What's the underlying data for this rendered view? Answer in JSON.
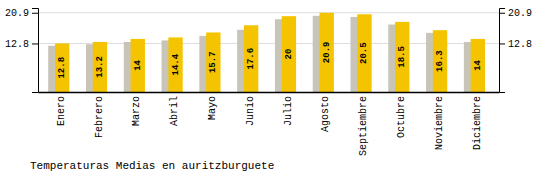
{
  "chart_data": {
    "type": "bar",
    "title": "Temperaturas Medias en auritzburguete",
    "categories": [
      "Enero",
      "Febrero",
      "Marzo",
      "Abril",
      "Mayo",
      "Junio",
      "Julio",
      "Agosto",
      "Septiembre",
      "Octubre",
      "Noviembre",
      "Diciembre"
    ],
    "series": [
      {
        "color": "#C8C4B8",
        "values": [
          12.2,
          12.6,
          13.2,
          13.6,
          14.8,
          16.4,
          19.2,
          20.1,
          19.8,
          17.8,
          15.6,
          13.2
        ]
      },
      {
        "color": "#F5C400",
        "values": [
          12.8,
          13.2,
          14.0,
          14.4,
          15.7,
          17.6,
          20.0,
          20.9,
          20.5,
          18.5,
          16.3,
          14.0
        ],
        "data_labels": true
      }
    ],
    "ylim": [
      0,
      22.154
    ],
    "yticks": [
      12.8,
      20.9
    ],
    "grid": true
  }
}
